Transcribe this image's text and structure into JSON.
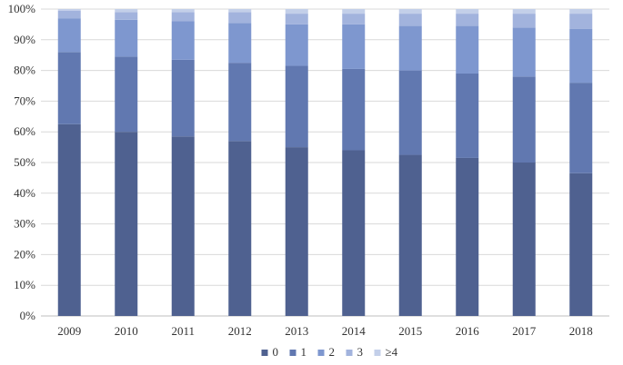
{
  "chart_data": {
    "type": "bar",
    "stacked": true,
    "percent": true,
    "title": "",
    "xlabel": "",
    "ylabel": "",
    "ylim": [
      0,
      100
    ],
    "yticks": [
      "0%",
      "10%",
      "20%",
      "30%",
      "40%",
      "50%",
      "60%",
      "70%",
      "80%",
      "90%",
      "100%"
    ],
    "categories": [
      "2009",
      "2010",
      "2011",
      "2012",
      "2013",
      "2014",
      "2015",
      "2016",
      "2017",
      "2018"
    ],
    "grid": true,
    "legend_position": "bottom",
    "series": [
      {
        "name": "0",
        "color": "#4f6190",
        "values": [
          62.5,
          60.0,
          58.5,
          57.0,
          55.0,
          54.0,
          52.5,
          51.5,
          50.0,
          46.5
        ]
      },
      {
        "name": "1",
        "color": "#6178b0",
        "values": [
          23.5,
          24.5,
          25.0,
          25.5,
          26.5,
          26.5,
          27.5,
          27.5,
          28.0,
          29.5
        ]
      },
      {
        "name": "2",
        "color": "#7e97cf",
        "values": [
          11.0,
          12.0,
          12.5,
          13.0,
          13.5,
          14.5,
          14.5,
          15.5,
          16.0,
          17.5
        ]
      },
      {
        "name": "3",
        "color": "#a2b3dd",
        "values": [
          2.5,
          2.5,
          3.0,
          3.5,
          3.5,
          3.5,
          4.0,
          4.0,
          4.5,
          5.0
        ]
      },
      {
        "name": "≥4",
        "color": "#c3cfe9",
        "values": [
          0.5,
          1.0,
          1.0,
          1.0,
          1.5,
          1.5,
          1.5,
          1.5,
          1.5,
          1.5
        ]
      }
    ]
  }
}
